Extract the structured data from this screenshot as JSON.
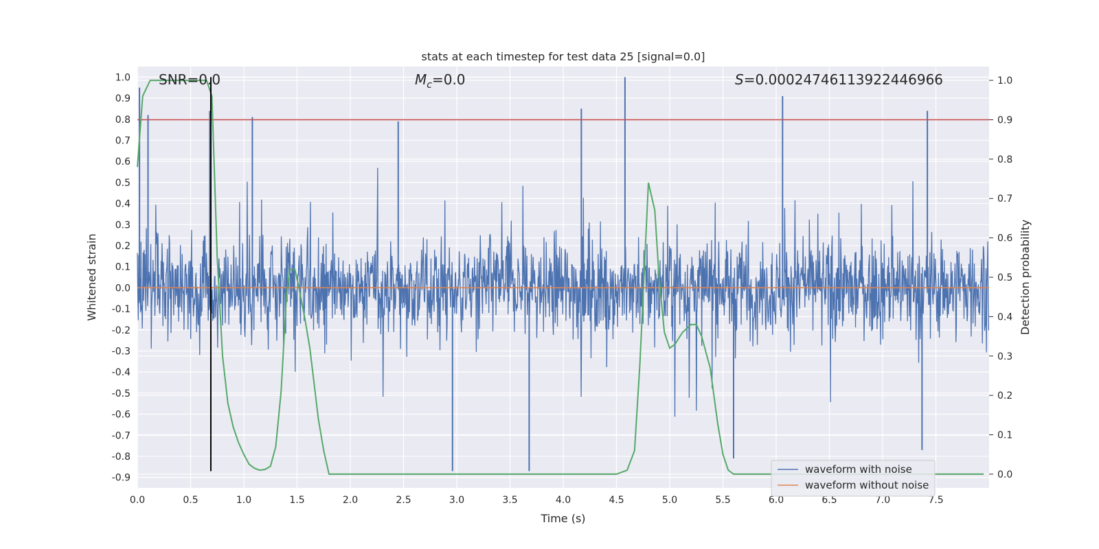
{
  "chart_data": {
    "type": "line",
    "title": "stats at each timestep for test data 25 [signal=0.0]",
    "xlabel": "Time (s)",
    "ylabel_left": "Whitened strain",
    "ylabel_right": "Detection probability",
    "xlim": [
      0.0,
      8.0
    ],
    "ylim_left": [
      -0.95,
      1.05
    ],
    "ylim_right": [
      -0.035,
      1.035
    ],
    "x_ticks": [
      "0.0",
      "0.5",
      "1.0",
      "1.5",
      "2.0",
      "2.5",
      "3.0",
      "3.5",
      "4.0",
      "4.5",
      "5.0",
      "5.5",
      "6.0",
      "6.5",
      "7.0",
      "7.5"
    ],
    "y_ticks_left": [
      "1.0",
      "0.9",
      "0.8",
      "0.7",
      "0.6",
      "0.5",
      "0.4",
      "0.3",
      "0.2",
      "0.1",
      "0.0",
      "-0.1",
      "-0.2",
      "-0.3",
      "-0.4",
      "-0.5",
      "-0.6",
      "-0.7",
      "-0.8",
      "-0.9"
    ],
    "y_ticks_right": [
      "1.0",
      "0.9",
      "0.8",
      "0.7",
      "0.6",
      "0.5",
      "0.4",
      "0.3",
      "0.2",
      "0.1",
      "0.0"
    ],
    "annotations": {
      "snr": "SNR=0.0",
      "mc_symbol": "M",
      "mc_sub": "c",
      "mc_value": "=0.0",
      "s_symbol": "S",
      "s_value": "=0.00024746113922446966"
    },
    "threshold_line": {
      "y": 0.9,
      "axis": "right",
      "color": "#c44e52"
    },
    "marker_line": {
      "x": 0.69,
      "y_range": [
        -0.87,
        1.0
      ],
      "color": "#000000"
    },
    "legend": {
      "placement": "lower-right",
      "entries": [
        "waveform with noise",
        "waveform without noise"
      ]
    },
    "series": [
      {
        "name": "waveform with noise",
        "color": "#4c72b0",
        "description_type": "dense noise",
        "spikes": [
          [
            0.02,
            0.95
          ],
          [
            0.1,
            0.82
          ],
          [
            0.68,
            0.84
          ],
          [
            1.08,
            0.81
          ],
          [
            2.45,
            0.79
          ],
          [
            4.17,
            0.85
          ],
          [
            4.58,
            1.0
          ],
          [
            6.06,
            0.91
          ],
          [
            7.42,
            0.84
          ],
          [
            2.96,
            -0.87
          ],
          [
            3.68,
            -0.87
          ],
          [
            5.6,
            -0.81
          ],
          [
            7.37,
            -0.77
          ]
        ]
      },
      {
        "name": "waveform without noise",
        "color": "#dd8452",
        "x": [
          0.0,
          8.0
        ],
        "y": [
          0.0,
          0.0
        ]
      },
      {
        "name": "",
        "color": "#55a868",
        "axis": "right",
        "x": [
          0.0,
          0.05,
          0.12,
          0.2,
          0.3,
          0.4,
          0.5,
          0.6,
          0.65,
          0.7,
          0.75,
          0.8,
          0.85,
          0.9,
          0.95,
          1.0,
          1.05,
          1.1,
          1.15,
          1.2,
          1.25,
          1.3,
          1.35,
          1.4,
          1.43,
          1.48,
          1.52,
          1.57,
          1.62,
          1.7,
          1.75,
          1.8,
          1.85,
          2.0,
          2.5,
          3.0,
          3.5,
          4.0,
          4.5,
          4.55,
          4.6,
          4.67,
          4.72,
          4.8,
          4.86,
          4.9,
          4.95,
          5.0,
          5.05,
          5.12,
          5.2,
          5.25,
          5.3,
          5.38,
          5.45,
          5.5,
          5.55,
          5.6,
          5.65,
          5.7,
          6.0,
          7.0,
          7.95
        ],
        "y": [
          0.78,
          0.96,
          1.0,
          1.0,
          1.0,
          1.0,
          1.0,
          1.0,
          1.0,
          0.96,
          0.55,
          0.3,
          0.18,
          0.12,
          0.08,
          0.05,
          0.025,
          0.015,
          0.01,
          0.012,
          0.02,
          0.07,
          0.21,
          0.45,
          0.52,
          0.52,
          0.47,
          0.4,
          0.32,
          0.14,
          0.06,
          0.0,
          0.0,
          0.0,
          0.0,
          0.0,
          0.0,
          0.0,
          0.0,
          0.005,
          0.01,
          0.06,
          0.28,
          0.74,
          0.67,
          0.5,
          0.36,
          0.32,
          0.33,
          0.36,
          0.38,
          0.38,
          0.35,
          0.27,
          0.13,
          0.05,
          0.01,
          0.0,
          0.0,
          0.0,
          0.0,
          0.0,
          0.0
        ]
      }
    ]
  }
}
